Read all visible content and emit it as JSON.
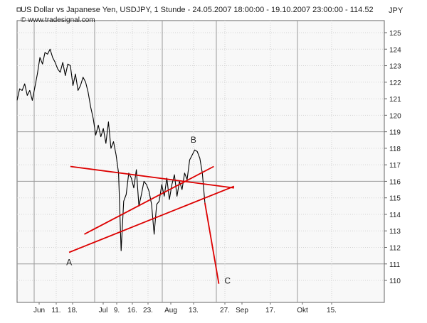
{
  "chart_data": {
    "type": "line",
    "title": "US Dollar vs Japanese Yen, USDJPY, 1 Stunde - 24.05.2007 18:00:00 - 19.10.2007 23:00:00 - 114.52",
    "subtitle": "© www.tradesignal.com",
    "ylabel": "JPY",
    "ylim": [
      109,
      126
    ],
    "y_ticks": [
      110,
      111,
      112,
      113,
      114,
      115,
      116,
      117,
      118,
      119,
      120,
      121,
      122,
      123,
      124,
      125
    ],
    "y_major_gridlines": [
      111,
      116,
      119
    ],
    "x_tick_labels": [
      "Jun",
      "11.",
      "18.",
      "Jul",
      "9.",
      "16.",
      "23.",
      "Aug",
      "13.",
      "27.",
      "Sep",
      "17.",
      "Okt",
      "15."
    ],
    "x_major_gridlines": [
      "Jun",
      "Jul",
      "Aug",
      "Sep",
      "Okt"
    ],
    "grid": true,
    "series": [
      {
        "color": "#000000",
        "x": [
          0,
          2,
          4,
          6,
          8,
          10,
          12,
          14,
          16,
          18,
          20,
          22,
          24,
          26,
          28,
          30,
          32,
          34,
          36,
          38,
          40,
          42,
          44,
          46,
          48,
          50,
          52,
          54,
          56,
          58,
          60,
          62,
          64,
          66,
          68,
          70,
          72,
          74,
          76,
          78,
          80,
          82,
          84,
          86,
          88,
          90,
          92,
          94,
          96,
          98,
          100,
          102,
          104,
          106,
          108,
          110,
          112,
          114,
          116,
          118,
          120,
          122,
          124,
          126,
          128,
          130,
          132,
          134,
          136,
          138,
          140,
          142,
          144,
          146,
          148
        ],
        "values": [
          120.9,
          121.6,
          121.5,
          121.9,
          121.2,
          121.5,
          120.9,
          121.7,
          122.5,
          123.5,
          123.1,
          123.8,
          123.7,
          124.0,
          123.5,
          123.2,
          122.8,
          122.6,
          123.2,
          122.4,
          123.1,
          123.0,
          121.8,
          122.5,
          121.5,
          121.8,
          122.3,
          122.0,
          121.4,
          120.5,
          119.8,
          118.8,
          119.4,
          118.7,
          119.2,
          118.3,
          119.6,
          118.0,
          118.4,
          117.6,
          116.5,
          111.8,
          114.8,
          115.2,
          116.5,
          116.2,
          115.6,
          116.7,
          114.5,
          115.2,
          116.0,
          115.8,
          115.4,
          114.6,
          112.8,
          114.6,
          114.8,
          115.8,
          115.1,
          116.2,
          114.9,
          115.8,
          116.4,
          115.1,
          116.0,
          115.5,
          116.5,
          116.1,
          117.3,
          117.6,
          117.9,
          117.8,
          117.4,
          116.5,
          114.7
        ]
      }
    ],
    "annotations": [
      {
        "label": "A",
        "x": 41,
        "y": 111.7
      },
      {
        "label": "B",
        "x": 139,
        "y": 118.2
      },
      {
        "label": "C",
        "x": 158,
        "y": 109.9
      }
    ],
    "trend_lines": [
      {
        "color": "#dd0000",
        "from": {
          "x": 42,
          "y": 116.9
        },
        "to": {
          "x": 171,
          "y": 115.6
        }
      },
      {
        "color": "#dd0000",
        "from": {
          "x": 41,
          "y": 111.7
        },
        "to": {
          "x": 171,
          "y": 115.7
        }
      },
      {
        "color": "#dd0000",
        "from": {
          "x": 53,
          "y": 112.8
        },
        "to": {
          "x": 155,
          "y": 116.9
        }
      },
      {
        "color": "#dd0000",
        "from": {
          "x": 148,
          "y": 114.7
        },
        "to": {
          "x": 159,
          "y": 109.8
        }
      }
    ]
  }
}
